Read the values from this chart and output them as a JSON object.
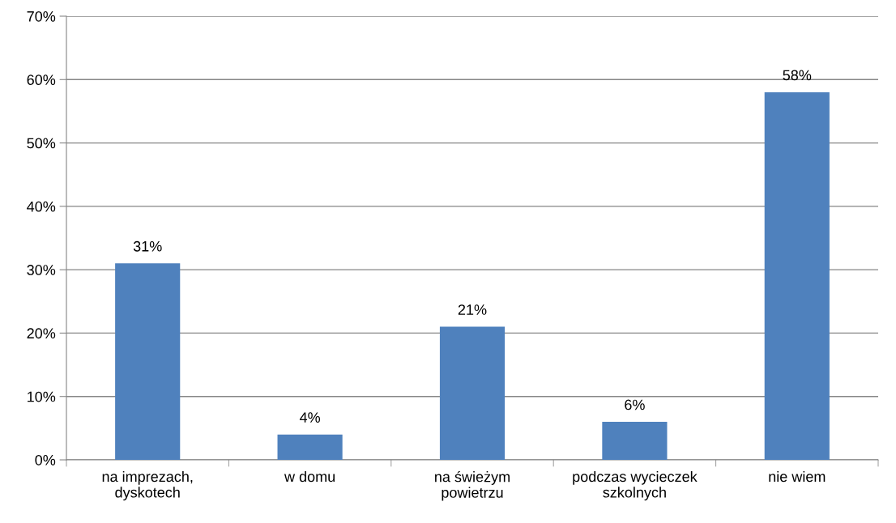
{
  "chart_data": {
    "type": "bar",
    "categories": [
      "na imprezach,\ndyskotech",
      "w domu",
      "na świeżym\npowietrzu",
      "podczas wycieczek\nszkolnych",
      "nie wiem"
    ],
    "values": [
      31,
      4,
      21,
      6,
      58
    ],
    "value_labels": [
      "31%",
      "4%",
      "21%",
      "6%",
      "58%"
    ],
    "color": "#4f81bd",
    "ylim": [
      0,
      70
    ],
    "yticks": [
      {
        "value": 0,
        "label": "0%"
      },
      {
        "value": 10,
        "label": "10%"
      },
      {
        "value": 20,
        "label": "20%"
      },
      {
        "value": 30,
        "label": "30%"
      },
      {
        "value": 40,
        "label": "40%"
      },
      {
        "value": 50,
        "label": "50%"
      },
      {
        "value": 60,
        "label": "60%"
      },
      {
        "value": 70,
        "label": "70%"
      }
    ],
    "grid": "y",
    "legend": false
  }
}
